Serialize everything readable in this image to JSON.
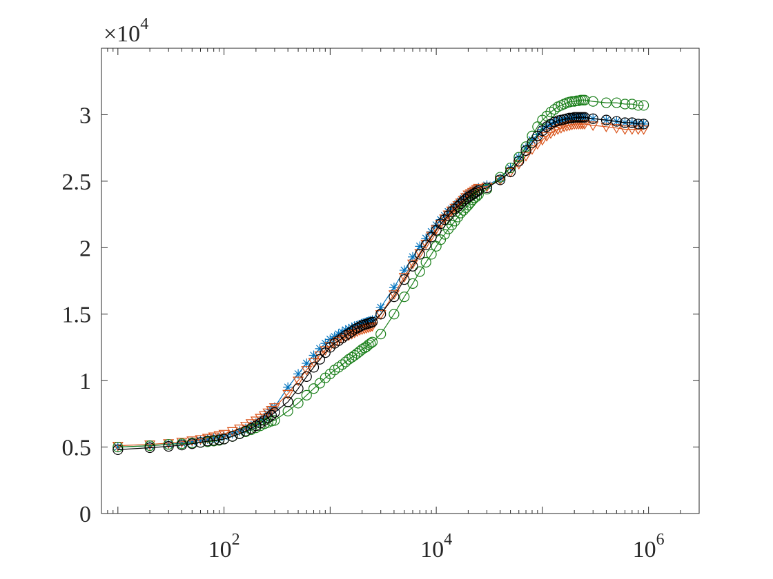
{
  "chart_data": {
    "type": "line",
    "title": "",
    "xlabel": "",
    "ylabel": "",
    "x_scale": "log",
    "xlim": [
      7,
      3000000
    ],
    "ylim": [
      0,
      35000
    ],
    "y_exponent_label": {
      "base": "×10",
      "exp": "4"
    },
    "x_ticks": [
      {
        "value": 100,
        "base": "10",
        "exp": "2"
      },
      {
        "value": 10000,
        "base": "10",
        "exp": "4"
      },
      {
        "value": 1000000,
        "base": "10",
        "exp": "6"
      }
    ],
    "y_ticks": [
      {
        "value": 0,
        "label": "0"
      },
      {
        "value": 5000,
        "label": "0.5"
      },
      {
        "value": 10000,
        "label": "1"
      },
      {
        "value": 15000,
        "label": "1.5"
      },
      {
        "value": 20000,
        "label": "2"
      },
      {
        "value": 25000,
        "label": "2.5"
      },
      {
        "value": 30000,
        "label": "3"
      }
    ],
    "grid": false,
    "legend": "none",
    "series": [
      {
        "color": "#0072BD",
        "marker": "star",
        "x": [
          10,
          20,
          30,
          40,
          50,
          60,
          70,
          80,
          90,
          100,
          120,
          140,
          160,
          180,
          200,
          220,
          240,
          260,
          280,
          300,
          400,
          500,
          600,
          700,
          800,
          900,
          1000,
          1100,
          1200,
          1300,
          1400,
          1500,
          1600,
          1700,
          1800,
          1900,
          2000,
          2100,
          2200,
          2300,
          2400,
          2500,
          3000,
          4000,
          5000,
          6000,
          7000,
          8000,
          9000,
          10000,
          11000,
          12000,
          13000,
          14000,
          15000,
          16000,
          17000,
          18000,
          19000,
          20000,
          21000,
          22000,
          23000,
          24000,
          25000,
          30000,
          40000,
          50000,
          60000,
          70000,
          80000,
          90000,
          100000,
          110000,
          120000,
          130000,
          140000,
          150000,
          160000,
          170000,
          180000,
          190000,
          200000,
          210000,
          220000,
          230000,
          240000,
          250000,
          300000,
          400000,
          500000,
          600000,
          700000,
          800000,
          900000
        ],
        "y": [
          5000,
          5100,
          5200,
          5300,
          5400,
          5500,
          5600,
          5650,
          5700,
          5800,
          6000,
          6200,
          6400,
          6600,
          6800,
          7000,
          7200,
          7500,
          7800,
          8000,
          9500,
          10500,
          11300,
          11900,
          12400,
          12800,
          13100,
          13300,
          13500,
          13650,
          13800,
          13900,
          14000,
          14100,
          14150,
          14200,
          14300,
          14350,
          14400,
          14450,
          14500,
          14550,
          15500,
          17000,
          18300,
          19300,
          20100,
          20700,
          21200,
          21700,
          22100,
          22400,
          22700,
          22900,
          23100,
          23300,
          23500,
          23700,
          23850,
          24000,
          24100,
          24200,
          24300,
          24400,
          24500,
          24700,
          25200,
          26000,
          26800,
          27500,
          28100,
          28500,
          28900,
          29100,
          29300,
          29400,
          29500,
          29600,
          29650,
          29700,
          29700,
          29750,
          29750,
          29800,
          29800,
          29800,
          29800,
          29800,
          29700,
          29600,
          29500,
          29400,
          29400,
          29300,
          29300
        ]
      },
      {
        "color": "#D95319",
        "marker": "triangle-down",
        "x": [
          10,
          20,
          30,
          40,
          50,
          60,
          70,
          80,
          90,
          100,
          120,
          140,
          160,
          180,
          200,
          220,
          240,
          260,
          280,
          300,
          400,
          500,
          600,
          700,
          800,
          900,
          1000,
          1100,
          1200,
          1300,
          1400,
          1500,
          1600,
          1700,
          1800,
          1900,
          2000,
          2100,
          2200,
          2300,
          2400,
          2500,
          3000,
          4000,
          5000,
          6000,
          7000,
          8000,
          9000,
          10000,
          11000,
          12000,
          13000,
          14000,
          15000,
          16000,
          17000,
          18000,
          19000,
          20000,
          21000,
          22000,
          23000,
          24000,
          25000,
          30000,
          40000,
          50000,
          60000,
          70000,
          80000,
          90000,
          100000,
          110000,
          120000,
          130000,
          140000,
          150000,
          160000,
          170000,
          180000,
          190000,
          200000,
          210000,
          220000,
          230000,
          240000,
          250000,
          300000,
          400000,
          500000,
          600000,
          700000,
          800000,
          900000
        ],
        "y": [
          5100,
          5200,
          5300,
          5400,
          5500,
          5600,
          5700,
          5800,
          5900,
          6000,
          6200,
          6400,
          6600,
          6800,
          7000,
          7200,
          7400,
          7600,
          7800,
          8000,
          9000,
          10000,
          10800,
          11400,
          11900,
          12300,
          12600,
          12800,
          13000,
          13150,
          13300,
          13400,
          13500,
          13600,
          13700,
          13800,
          13850,
          13900,
          13950,
          14000,
          14050,
          14100,
          15000,
          16500,
          17800,
          18800,
          19600,
          20300,
          20900,
          21400,
          21800,
          22200,
          22500,
          22800,
          23000,
          23200,
          23400,
          23600,
          23800,
          24000,
          24100,
          24200,
          24300,
          24400,
          24500,
          24600,
          25100,
          25700,
          26300,
          26900,
          27400,
          27800,
          28100,
          28400,
          28600,
          28800,
          28900,
          29000,
          29100,
          29150,
          29200,
          29250,
          29300,
          29300,
          29300,
          29300,
          29300,
          29300,
          29200,
          29100,
          29000,
          28900,
          28900,
          28900,
          28900
        ]
      },
      {
        "color": "#1A7F1A",
        "marker": "circle",
        "x": [
          10,
          20,
          30,
          40,
          50,
          60,
          70,
          80,
          90,
          100,
          120,
          140,
          160,
          180,
          200,
          220,
          240,
          260,
          280,
          300,
          400,
          500,
          600,
          700,
          800,
          900,
          1000,
          1100,
          1200,
          1300,
          1400,
          1500,
          1600,
          1700,
          1800,
          1900,
          2000,
          2100,
          2200,
          2300,
          2400,
          2500,
          3000,
          4000,
          5000,
          6000,
          7000,
          8000,
          9000,
          10000,
          11000,
          12000,
          13000,
          14000,
          15000,
          16000,
          17000,
          18000,
          19000,
          20000,
          21000,
          22000,
          23000,
          24000,
          25000,
          30000,
          40000,
          50000,
          60000,
          70000,
          80000,
          90000,
          100000,
          110000,
          120000,
          130000,
          140000,
          150000,
          160000,
          170000,
          180000,
          190000,
          200000,
          210000,
          220000,
          230000,
          240000,
          250000,
          300000,
          400000,
          500000,
          600000,
          700000,
          800000,
          900000
        ],
        "y": [
          5000,
          5100,
          5200,
          5250,
          5300,
          5350,
          5400,
          5450,
          5500,
          5600,
          5800,
          6000,
          6150,
          6300,
          6450,
          6600,
          6750,
          6850,
          6950,
          7000,
          7700,
          8300,
          8900,
          9400,
          9800,
          10200,
          10500,
          10800,
          11000,
          11200,
          11400,
          11600,
          11750,
          11900,
          12050,
          12200,
          12350,
          12450,
          12550,
          12700,
          12800,
          12900,
          13500,
          15000,
          16300,
          17300,
          18200,
          18900,
          19500,
          20100,
          20600,
          21000,
          21400,
          21700,
          22000,
          22300,
          22600,
          22800,
          23000,
          23200,
          23400,
          23600,
          23750,
          23850,
          24000,
          24400,
          25300,
          26000,
          26800,
          27600,
          28400,
          29100,
          29600,
          29900,
          30200,
          30400,
          30600,
          30700,
          30800,
          30900,
          30950,
          31000,
          31000,
          31050,
          31050,
          31100,
          31100,
          31100,
          31000,
          30900,
          30900,
          30800,
          30800,
          30700,
          30700
        ]
      },
      {
        "color": "#000000",
        "marker": "circle",
        "x": [
          10,
          20,
          30,
          40,
          50,
          60,
          70,
          80,
          90,
          100,
          120,
          140,
          160,
          180,
          200,
          220,
          240,
          260,
          280,
          300,
          400,
          500,
          600,
          700,
          800,
          900,
          1000,
          1100,
          1200,
          1300,
          1400,
          1500,
          1600,
          1700,
          1800,
          1900,
          2000,
          2100,
          2200,
          2300,
          2400,
          2500,
          3000,
          4000,
          5000,
          6000,
          7000,
          8000,
          9000,
          10000,
          11000,
          12000,
          13000,
          14000,
          15000,
          16000,
          17000,
          18000,
          19000,
          20000,
          21000,
          22000,
          23000,
          24000,
          25000,
          30000,
          40000,
          50000,
          60000,
          70000,
          80000,
          90000,
          100000,
          110000,
          120000,
          130000,
          140000,
          150000,
          160000,
          170000,
          180000,
          190000,
          200000,
          210000,
          220000,
          230000,
          240000,
          250000,
          300000,
          400000,
          500000,
          600000,
          700000,
          800000,
          900000
        ],
        "y": [
          4800,
          4950,
          5050,
          5150,
          5250,
          5350,
          5450,
          5500,
          5550,
          5600,
          5800,
          6000,
          6200,
          6400,
          6600,
          6800,
          7000,
          7200,
          7400,
          7600,
          8400,
          9400,
          10300,
          11000,
          11600,
          12100,
          12500,
          12800,
          13000,
          13200,
          13400,
          13550,
          13700,
          13850,
          13950,
          14050,
          14150,
          14200,
          14250,
          14300,
          14350,
          14400,
          15000,
          16300,
          17600,
          18600,
          19500,
          20200,
          20800,
          21300,
          21800,
          22100,
          22400,
          22700,
          22900,
          23100,
          23300,
          23500,
          23650,
          23800,
          23900,
          24000,
          24100,
          24200,
          24300,
          24500,
          25100,
          25700,
          26500,
          27300,
          27900,
          28400,
          28800,
          29100,
          29300,
          29450,
          29550,
          29600,
          29650,
          29700,
          29750,
          29750,
          29800,
          29800,
          29800,
          29800,
          29800,
          29800,
          29700,
          29600,
          29500,
          29400,
          29400,
          29300,
          29300
        ]
      }
    ]
  }
}
